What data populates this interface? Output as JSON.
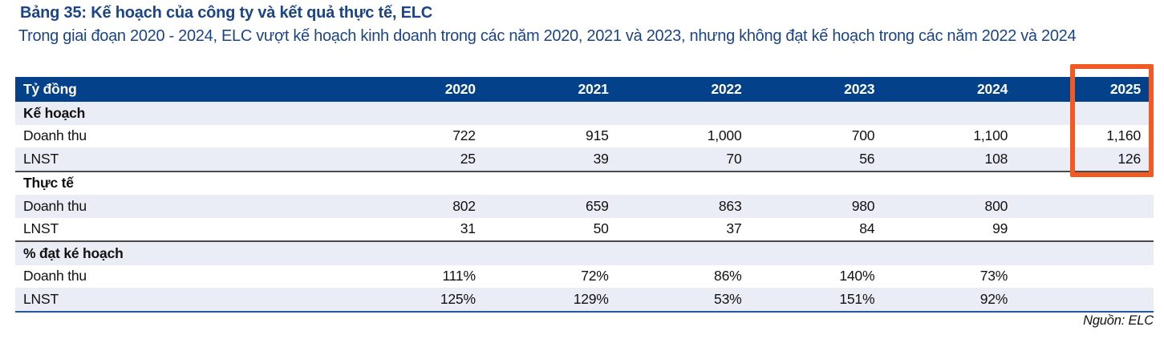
{
  "page": {
    "title": "Bảng 35: Kế hoạch của công ty và kết quả thực tế, ELC",
    "subtitle": "Trong giai đoạn 2020 - 2024, ELC vượt kế hoạch kinh doanh trong các năm 2020, 2021 và 2023, nhưng không đạt kế hoạch trong các năm 2022 và 2024",
    "source": "Nguồn: ELC"
  },
  "colors": {
    "title_text": "#1B4489",
    "header_bg": "#04418B",
    "stripe_bg": "#EAEDF5",
    "section_divider": "#4A4A4A",
    "bottom_border": "#2456A3",
    "highlight_orange": "#F15A22"
  },
  "table": {
    "unit_label": "Tỷ đồng",
    "years": [
      "2020",
      "2021",
      "2022",
      "2023",
      "2024",
      "2025"
    ],
    "highlighted_year": "2025",
    "sections": [
      {
        "name": "Kế hoạch",
        "rows": [
          {
            "label": "Doanh thu",
            "values": [
              "722",
              "915",
              "1,000",
              "700",
              "1,100",
              "1,160"
            ]
          },
          {
            "label": "LNST",
            "values": [
              "25",
              "39",
              "70",
              "56",
              "108",
              "126"
            ]
          }
        ]
      },
      {
        "name": "Thực tế",
        "rows": [
          {
            "label": "Doanh thu",
            "values": [
              "802",
              "659",
              "863",
              "980",
              "800",
              ""
            ]
          },
          {
            "label": "LNST",
            "values": [
              "31",
              "50",
              "37",
              "84",
              "99",
              ""
            ]
          }
        ]
      },
      {
        "name": "% đạt ké hoạch",
        "rows": [
          {
            "label": "Doanh thu",
            "values": [
              "111%",
              "72%",
              "86%",
              "140%",
              "73%",
              ""
            ]
          },
          {
            "label": "LNST",
            "values": [
              "125%",
              "129%",
              "53%",
              "151%",
              "92%",
              ""
            ]
          }
        ]
      }
    ]
  }
}
